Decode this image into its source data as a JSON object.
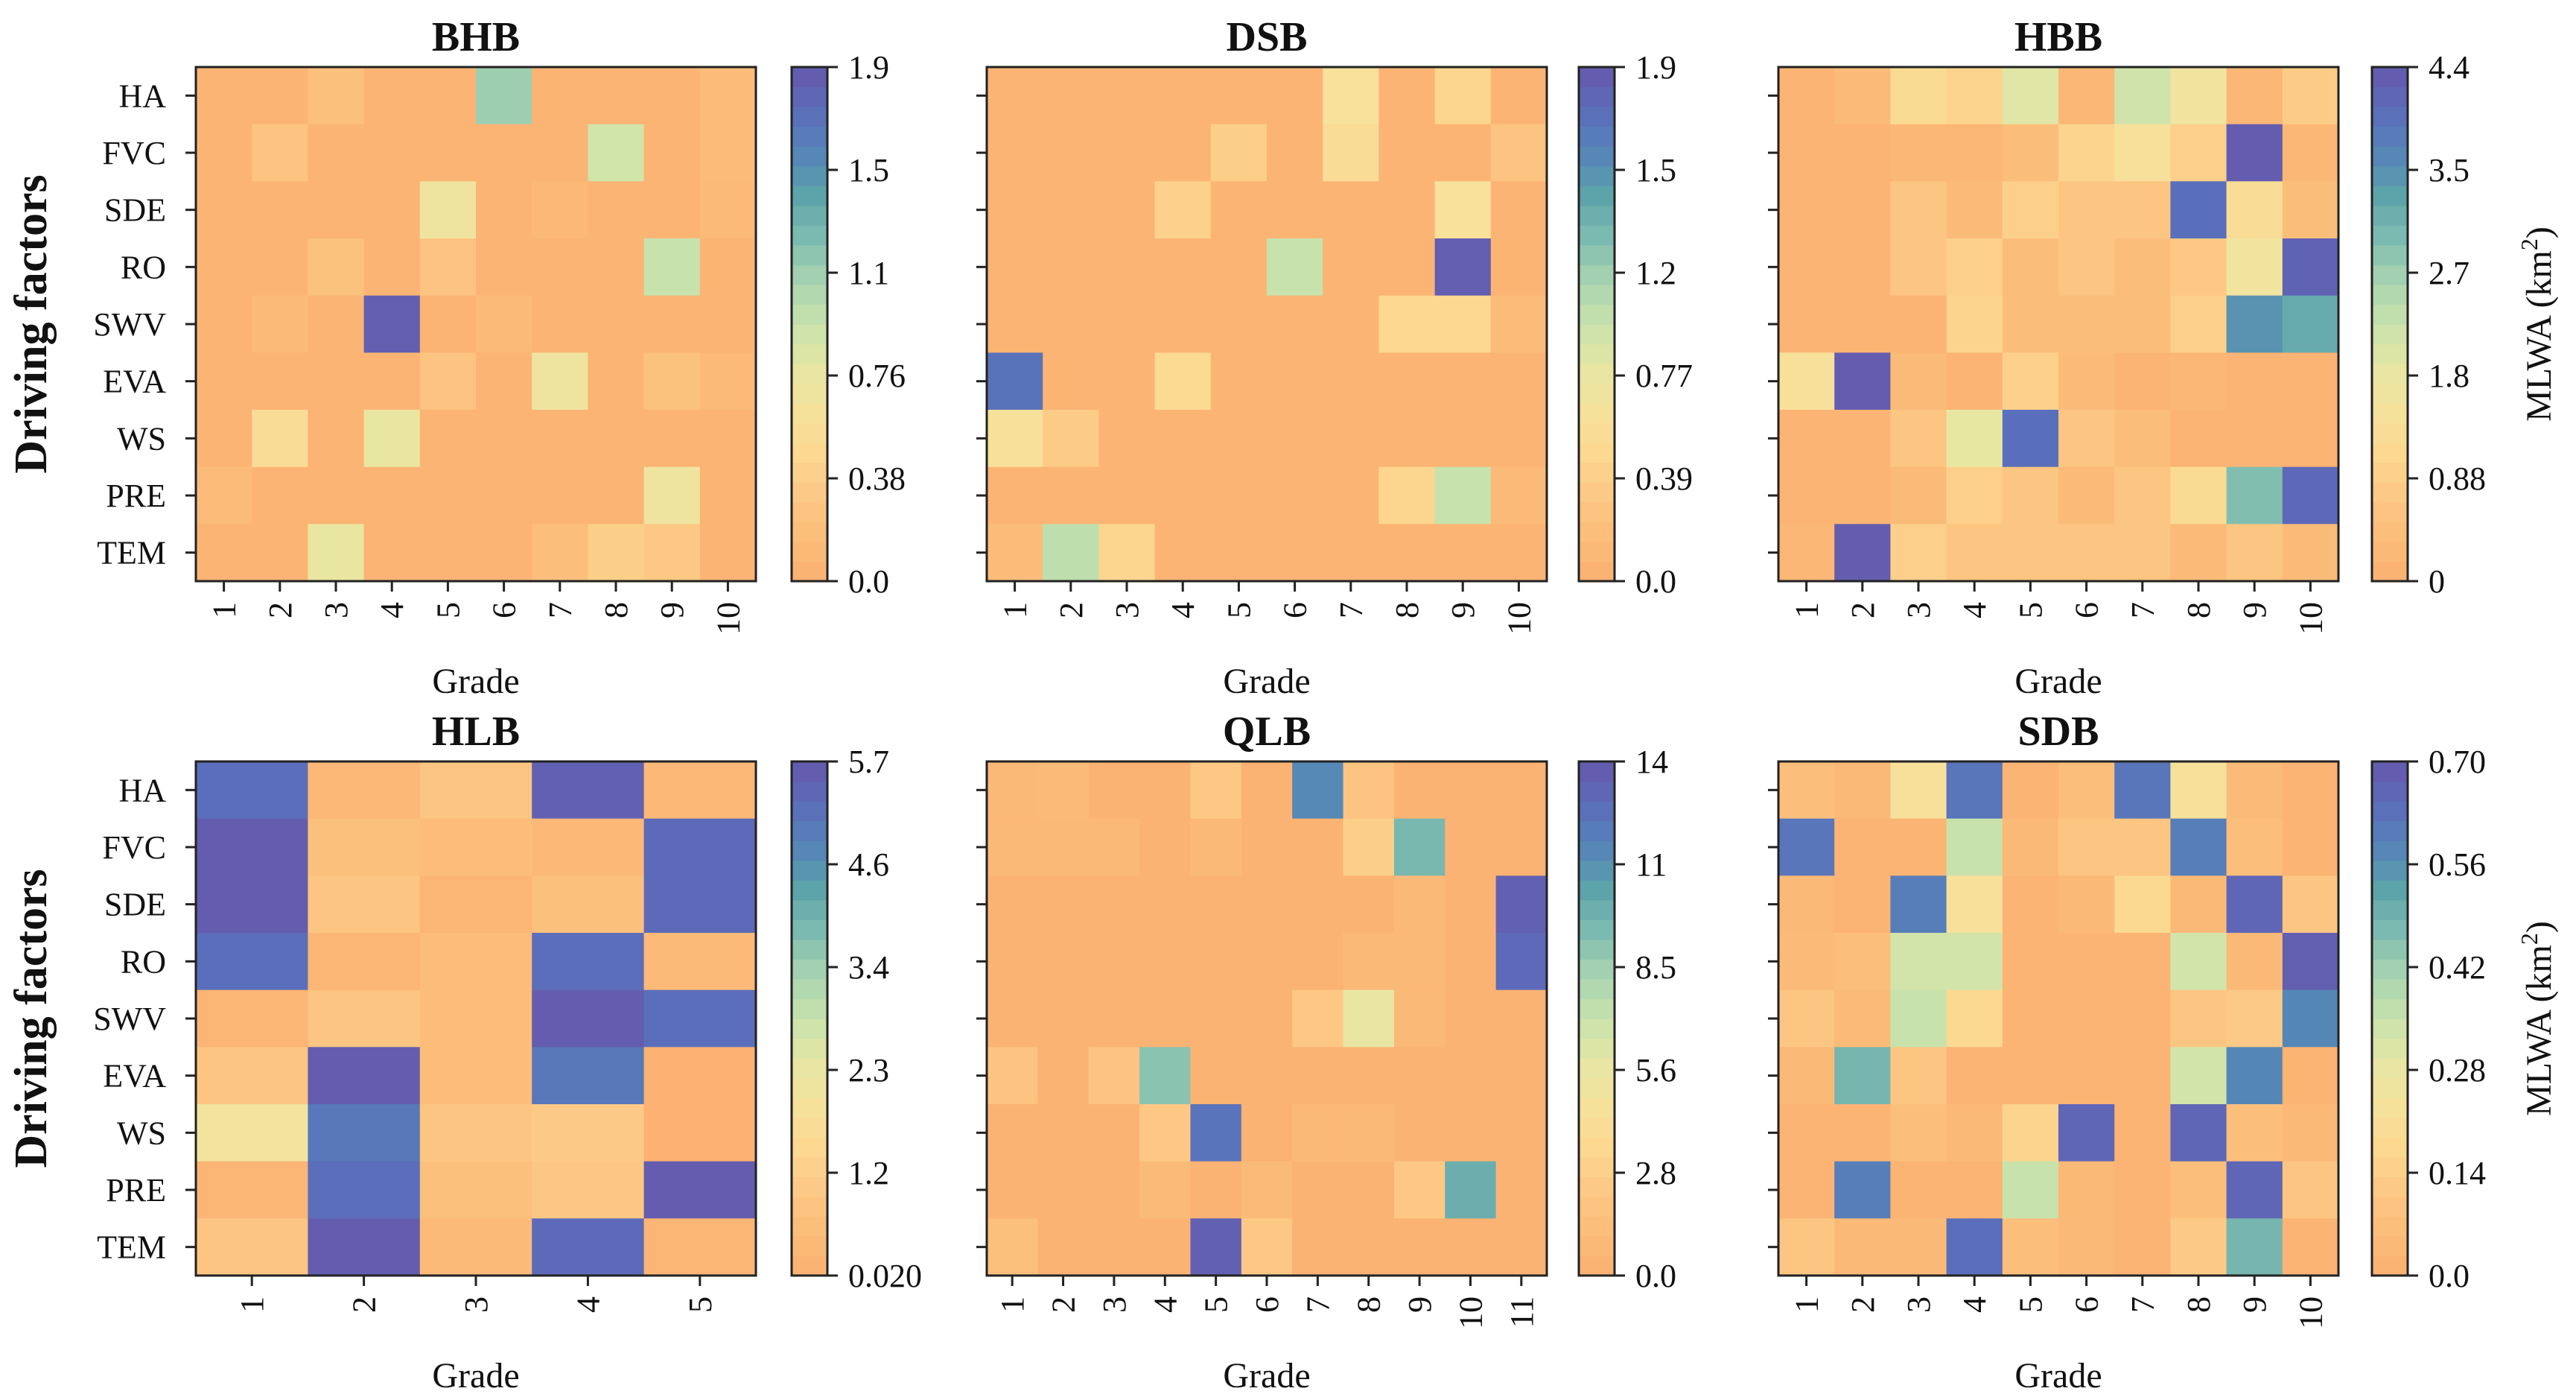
{
  "figure": {
    "row_axis_title": "Driving factors",
    "colorbar_title": "MLWA (km",
    "colorbar_title_sup": "2",
    "colorbar_title_end": ")",
    "palette_low_to_high": [
      "#fbb072",
      "#fbbd79",
      "#fcc985",
      "#fcd890",
      "#f6e29c",
      "#e5e7a3",
      "#c8e2ac",
      "#a8d4b0",
      "#7ebcb0",
      "#5da3aa",
      "#5585b7",
      "#5b6dbb",
      "#6757ab"
    ]
  },
  "chart_data": [
    {
      "type": "heatmap",
      "title": "BHB",
      "xlabel": "Grade",
      "ylabel": "Driving factors",
      "rows": [
        "HA",
        "FVC",
        "SDE",
        "RO",
        "SWV",
        "EVA",
        "WS",
        "PRE",
        "TEM"
      ],
      "columns": [
        "1",
        "2",
        "3",
        "4",
        "5",
        "6",
        "7",
        "8",
        "9",
        "10"
      ],
      "values": [
        [
          0.05,
          0.05,
          0.2,
          0.05,
          0.05,
          1.15,
          0.05,
          0.05,
          0.05,
          0.15
        ],
        [
          0.05,
          0.25,
          0.05,
          0.05,
          0.05,
          0.05,
          0.05,
          0.9,
          0.05,
          0.15
        ],
        [
          0.05,
          0.05,
          0.05,
          0.05,
          0.7,
          0.05,
          0.1,
          0.05,
          0.05,
          0.12
        ],
        [
          0.05,
          0.05,
          0.22,
          0.05,
          0.25,
          0.05,
          0.05,
          0.05,
          0.95,
          0.05
        ],
        [
          0.05,
          0.12,
          0.05,
          1.85,
          0.05,
          0.12,
          0.05,
          0.05,
          0.05,
          0.05
        ],
        [
          0.05,
          0.05,
          0.05,
          0.05,
          0.25,
          0.05,
          0.7,
          0.05,
          0.22,
          0.12
        ],
        [
          0.05,
          0.55,
          0.05,
          0.75,
          0.05,
          0.05,
          0.05,
          0.05,
          0.05,
          0.05
        ],
        [
          0.15,
          0.05,
          0.05,
          0.05,
          0.05,
          0.05,
          0.05,
          0.05,
          0.7,
          0.05
        ],
        [
          0.05,
          0.05,
          0.75,
          0.05,
          0.05,
          0.05,
          0.18,
          0.38,
          0.3,
          0.05
        ]
      ],
      "colorbar": {
        "min": 0.0,
        "max": 1.9,
        "ticks": [
          "0.0",
          "0.38",
          "0.76",
          "1.1",
          "1.5",
          "1.9"
        ]
      }
    },
    {
      "type": "heatmap",
      "title": "DSB",
      "xlabel": "Grade",
      "ylabel": "",
      "rows": [
        "HA",
        "FVC",
        "SDE",
        "RO",
        "SWV",
        "EVA",
        "WS",
        "PRE",
        "TEM"
      ],
      "columns": [
        "1",
        "2",
        "3",
        "4",
        "5",
        "6",
        "7",
        "8",
        "9",
        "10"
      ],
      "values": [
        [
          0.05,
          0.05,
          0.05,
          0.05,
          0.05,
          0.05,
          0.62,
          0.05,
          0.45,
          0.05
        ],
        [
          0.05,
          0.05,
          0.05,
          0.05,
          0.38,
          0.05,
          0.55,
          0.05,
          0.05,
          0.25
        ],
        [
          0.05,
          0.05,
          0.05,
          0.4,
          0.05,
          0.05,
          0.05,
          0.05,
          0.62,
          0.05
        ],
        [
          0.05,
          0.05,
          0.05,
          0.05,
          0.05,
          0.95,
          0.05,
          0.05,
          1.85,
          0.05
        ],
        [
          0.05,
          0.05,
          0.05,
          0.05,
          0.05,
          0.05,
          0.05,
          0.48,
          0.48,
          0.15
        ],
        [
          1.7,
          0.05,
          0.05,
          0.5,
          0.05,
          0.05,
          0.05,
          0.05,
          0.05,
          0.05
        ],
        [
          0.6,
          0.35,
          0.05,
          0.05,
          0.05,
          0.05,
          0.05,
          0.05,
          0.05,
          0.05
        ],
        [
          0.05,
          0.05,
          0.05,
          0.05,
          0.05,
          0.05,
          0.05,
          0.45,
          0.95,
          0.12
        ],
        [
          0.15,
          1.0,
          0.45,
          0.05,
          0.05,
          0.05,
          0.05,
          0.05,
          0.05,
          0.05
        ]
      ],
      "colorbar": {
        "min": 0.0,
        "max": 1.9,
        "ticks": [
          "0.0",
          "0.39",
          "0.77",
          "1.2",
          "1.5",
          "1.9"
        ]
      }
    },
    {
      "type": "heatmap",
      "title": "HBB",
      "xlabel": "Grade",
      "ylabel": "",
      "rows": [
        "HA",
        "FVC",
        "SDE",
        "RO",
        "SWV",
        "EVA",
        "WS",
        "PRE",
        "TEM"
      ],
      "columns": [
        "1",
        "2",
        "3",
        "4",
        "5",
        "6",
        "7",
        "8",
        "9",
        "10"
      ],
      "values": [
        [
          0.1,
          0.3,
          1.2,
          1.0,
          1.9,
          0.2,
          2.1,
          1.6,
          0.2,
          0.8
        ],
        [
          0.1,
          0.1,
          0.2,
          0.2,
          0.4,
          1.0,
          1.4,
          0.9,
          4.3,
          0.2
        ],
        [
          0.1,
          0.1,
          0.6,
          0.3,
          0.9,
          0.6,
          0.6,
          4.0,
          1.3,
          0.4
        ],
        [
          0.1,
          0.1,
          0.6,
          0.9,
          0.4,
          0.6,
          0.4,
          0.7,
          1.6,
          4.2
        ],
        [
          0.1,
          0.1,
          0.1,
          1.0,
          0.4,
          0.4,
          0.4,
          0.9,
          3.5,
          3.2
        ],
        [
          1.4,
          4.3,
          0.3,
          0.1,
          0.9,
          0.3,
          0.1,
          0.2,
          0.1,
          0.1
        ],
        [
          0.1,
          0.1,
          0.6,
          1.8,
          4.0,
          0.6,
          0.4,
          0.1,
          0.1,
          0.1
        ],
        [
          0.1,
          0.1,
          0.3,
          0.9,
          0.6,
          0.3,
          0.6,
          1.2,
          2.9,
          4.1
        ],
        [
          0.2,
          4.3,
          0.9,
          0.6,
          0.6,
          0.6,
          0.6,
          0.3,
          0.6,
          0.3
        ]
      ],
      "colorbar": {
        "min": 0.0,
        "max": 4.4,
        "ticks": [
          "0",
          "0.88",
          "1.8",
          "2.7",
          "3.5",
          "4.4"
        ]
      }
    },
    {
      "type": "heatmap",
      "title": "HLB",
      "xlabel": "Grade",
      "ylabel": "Driving factors",
      "rows": [
        "HA",
        "FVC",
        "SDE",
        "RO",
        "SWV",
        "EVA",
        "WS",
        "PRE",
        "TEM"
      ],
      "columns": [
        "1",
        "2",
        "3",
        "4",
        "5"
      ],
      "values": [
        [
          5.2,
          0.3,
          0.8,
          5.5,
          0.3
        ],
        [
          5.6,
          0.6,
          0.5,
          0.3,
          5.3
        ],
        [
          5.6,
          0.8,
          0.2,
          0.6,
          5.3
        ],
        [
          5.2,
          0.2,
          0.5,
          5.2,
          0.4
        ],
        [
          0.2,
          0.8,
          0.5,
          5.6,
          5.2
        ],
        [
          0.8,
          5.6,
          0.5,
          5.0,
          0.1
        ],
        [
          2.0,
          5.0,
          0.8,
          1.0,
          0.1
        ],
        [
          0.2,
          5.2,
          0.6,
          0.9,
          5.6
        ],
        [
          0.8,
          5.6,
          0.4,
          5.3,
          0.2
        ]
      ],
      "colorbar": {
        "min": 0.02,
        "max": 5.7,
        "ticks": [
          "0.020",
          "1.2",
          "2.3",
          "3.4",
          "4.6",
          "5.7"
        ]
      }
    },
    {
      "type": "heatmap",
      "title": "QLB",
      "xlabel": "Grade",
      "ylabel": "",
      "rows": [
        "HA",
        "FVC",
        "SDE",
        "RO",
        "SWV",
        "EVA",
        "WS",
        "PRE",
        "TEM"
      ],
      "columns": [
        "1",
        "2",
        "3",
        "4",
        "5",
        "6",
        "7",
        "8",
        "9",
        "10",
        "11"
      ],
      "values": [
        [
          0.8,
          1.0,
          0.3,
          0.3,
          2.2,
          0.3,
          11.5,
          1.8,
          0.3,
          0.3,
          0.3
        ],
        [
          0.8,
          0.8,
          0.8,
          0.3,
          0.8,
          0.3,
          0.3,
          2.8,
          9.5,
          0.3,
          0.3
        ],
        [
          0.3,
          0.3,
          0.3,
          0.3,
          0.3,
          0.3,
          0.3,
          0.3,
          0.8,
          0.3,
          13.5
        ],
        [
          0.3,
          0.3,
          0.3,
          0.3,
          0.3,
          0.3,
          0.3,
          0.8,
          0.8,
          0.3,
          13.0
        ],
        [
          0.3,
          0.3,
          0.3,
          0.3,
          0.3,
          0.3,
          2.2,
          5.6,
          0.8,
          0.3,
          0.3
        ],
        [
          1.8,
          0.3,
          1.8,
          9.0,
          0.3,
          0.3,
          0.3,
          0.3,
          0.3,
          0.3,
          0.3
        ],
        [
          0.3,
          0.3,
          0.3,
          2.2,
          12.5,
          0.3,
          0.8,
          0.8,
          0.3,
          0.3,
          0.3
        ],
        [
          0.3,
          0.3,
          0.3,
          1.0,
          0.3,
          1.0,
          0.3,
          0.3,
          2.2,
          10.0,
          0.3
        ],
        [
          1.5,
          0.3,
          0.3,
          0.3,
          13.5,
          2.2,
          0.3,
          0.3,
          0.3,
          0.3,
          0.3
        ]
      ],
      "colorbar": {
        "min": 0.0,
        "max": 14,
        "ticks": [
          "0.0",
          "2.8",
          "5.6",
          "8.5",
          "11",
          "14"
        ]
      }
    },
    {
      "type": "heatmap",
      "title": "SDB",
      "xlabel": "Grade",
      "ylabel": "",
      "rows": [
        "HA",
        "FVC",
        "SDE",
        "RO",
        "SWV",
        "EVA",
        "WS",
        "PRE",
        "TEM"
      ],
      "columns": [
        "1",
        "2",
        "3",
        "4",
        "5",
        "6",
        "7",
        "8",
        "9",
        "10"
      ],
      "values": [
        [
          0.07,
          0.04,
          0.22,
          0.62,
          0.02,
          0.07,
          0.62,
          0.22,
          0.05,
          0.02
        ],
        [
          0.62,
          0.02,
          0.02,
          0.35,
          0.04,
          0.1,
          0.1,
          0.6,
          0.07,
          0.02
        ],
        [
          0.04,
          0.02,
          0.6,
          0.22,
          0.02,
          0.04,
          0.18,
          0.04,
          0.66,
          0.1
        ],
        [
          0.05,
          0.07,
          0.33,
          0.33,
          0.02,
          0.02,
          0.02,
          0.33,
          0.04,
          0.68
        ],
        [
          0.1,
          0.05,
          0.35,
          0.18,
          0.02,
          0.02,
          0.02,
          0.1,
          0.12,
          0.58
        ],
        [
          0.04,
          0.48,
          0.1,
          0.02,
          0.02,
          0.02,
          0.02,
          0.33,
          0.58,
          0.02
        ],
        [
          0.02,
          0.02,
          0.07,
          0.04,
          0.16,
          0.66,
          0.02,
          0.66,
          0.07,
          0.04
        ],
        [
          0.02,
          0.6,
          0.02,
          0.02,
          0.35,
          0.04,
          0.02,
          0.07,
          0.66,
          0.1
        ],
        [
          0.1,
          0.04,
          0.04,
          0.64,
          0.07,
          0.04,
          0.02,
          0.12,
          0.48,
          0.02
        ]
      ],
      "colorbar": {
        "min": 0.0,
        "max": 0.7,
        "ticks": [
          "0.0",
          "0.14",
          "0.28",
          "0.42",
          "0.56",
          "0.70"
        ]
      }
    }
  ]
}
